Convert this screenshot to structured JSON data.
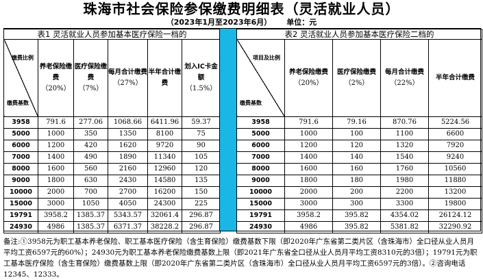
{
  "title": "珠海市社会保险参保缴费明细表（灵活就业人员）",
  "period": "（2023年1月至2023年6月）",
  "unit": "单位：元",
  "table1": {
    "caption": "表1 灵活就业人员参加基本医疗保险一档的",
    "corner_top": "缴费比例",
    "corner_bottom": "缴费基数",
    "headers": [
      {
        "label": "养老保险缴费",
        "pct": "（20%）"
      },
      {
        "label": "医疗保险缴费",
        "pct": "（7%）"
      },
      {
        "label": "每月合计缴费",
        "pct": "（27%）"
      },
      {
        "label": "半年合计缴费",
        "pct": ""
      },
      {
        "label": "划入IC卡金额",
        "pct": "（1.5%）"
      }
    ],
    "rows": [
      [
        "3958",
        "791.6",
        "277.06",
        "1068.66",
        "6411.96",
        "59.37"
      ],
      [
        "5000",
        "1000",
        "350",
        "1350",
        "8100",
        "75"
      ],
      [
        "6000",
        "1200",
        "420",
        "1620",
        "9720",
        "90"
      ],
      [
        "7000",
        "1400",
        "490",
        "1890",
        "11340",
        "105"
      ],
      [
        "8000",
        "1600",
        "560",
        "2160",
        "12960",
        "120"
      ],
      [
        "9000",
        "1800",
        "630",
        "2430",
        "14580",
        "135"
      ],
      [
        "10000",
        "2000",
        "700",
        "2700",
        "16200",
        "150"
      ],
      [
        "15000",
        "3000",
        "1050",
        "4050",
        "24300",
        "225"
      ],
      [
        "19791",
        "3958.2",
        "1385.37",
        "5343.57",
        "32061.4",
        "296.87"
      ],
      [
        "24930",
        "4986",
        "1385.37",
        "6371.37",
        "38228.2",
        "296.87"
      ]
    ]
  },
  "table2": {
    "caption": "表2 灵活就业人员参加基本医疗保险二档的",
    "corner_top": "项目及比例",
    "corner_bottom": "缴费基数",
    "headers": [
      {
        "label": "养老保险缴费",
        "pct": "（20%）"
      },
      {
        "label": "医疗保险缴费",
        "pct": "（2%）"
      },
      {
        "label": "每月合计缴费",
        "pct": "（22%）"
      },
      {
        "label": "半年合计缴费",
        "pct": ""
      }
    ],
    "rows": [
      [
        "3958",
        "791.6",
        "79.16",
        "870.76",
        "5224.56"
      ],
      [
        "5000",
        "1000",
        "100",
        "1100",
        "6600"
      ],
      [
        "6000",
        "1200",
        "120",
        "1320",
        "7920"
      ],
      [
        "7000",
        "1400",
        "140",
        "1540",
        "9240"
      ],
      [
        "8000",
        "1600",
        "160",
        "1760",
        "10560"
      ],
      [
        "9000",
        "1800",
        "180",
        "1980",
        "11880"
      ],
      [
        "10000",
        "2000",
        "200",
        "2200",
        "13200"
      ],
      [
        "15000",
        "3000",
        "300",
        "3300",
        "19800"
      ],
      [
        "19791",
        "3958.2",
        "395.82",
        "4354.02",
        "26124.12"
      ],
      [
        "24930",
        "4986",
        "395.82",
        "5381.82",
        "32290.92"
      ]
    ]
  },
  "note": "备注:①3958元为职工基本养老保险、职工基本医疗保险（含生育保险）缴费基数下限（即2020年广东省第二类片区（含珠海市）全口径从业人员月平均工资6597元的60%）；24930元为职工基本养老保险缴费基数上限（即2021年广东省全口径从业人员月平均工资8310元的3倍）；19791元为职工基本医疗保险（含生育保险）缴费基数上限（即2020年广东省第二类片区（含珠海市）全口径从业人员月平均工资6597元的3倍）。②咨询电话12345、12333。"
}
